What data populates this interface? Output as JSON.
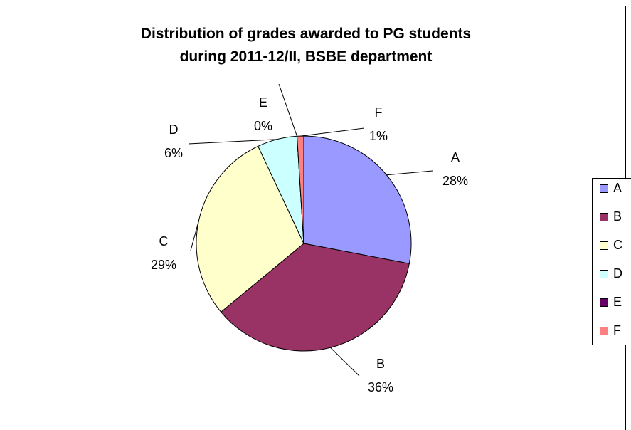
{
  "chart_data": {
    "type": "pie",
    "title": "Distribution of grades awarded to PG students during 2011-12/II, BSBE department",
    "categories": [
      "A",
      "B",
      "C",
      "D",
      "E",
      "F"
    ],
    "values": [
      28,
      36,
      29,
      6,
      0,
      1
    ],
    "value_labels": [
      "28%",
      "36%",
      "29%",
      "6%",
      "0%",
      "1%"
    ],
    "colors": [
      "#9999ff",
      "#993366",
      "#ffffcc",
      "#ccffff",
      "#660066",
      "#ff8080"
    ],
    "legend": "right"
  }
}
